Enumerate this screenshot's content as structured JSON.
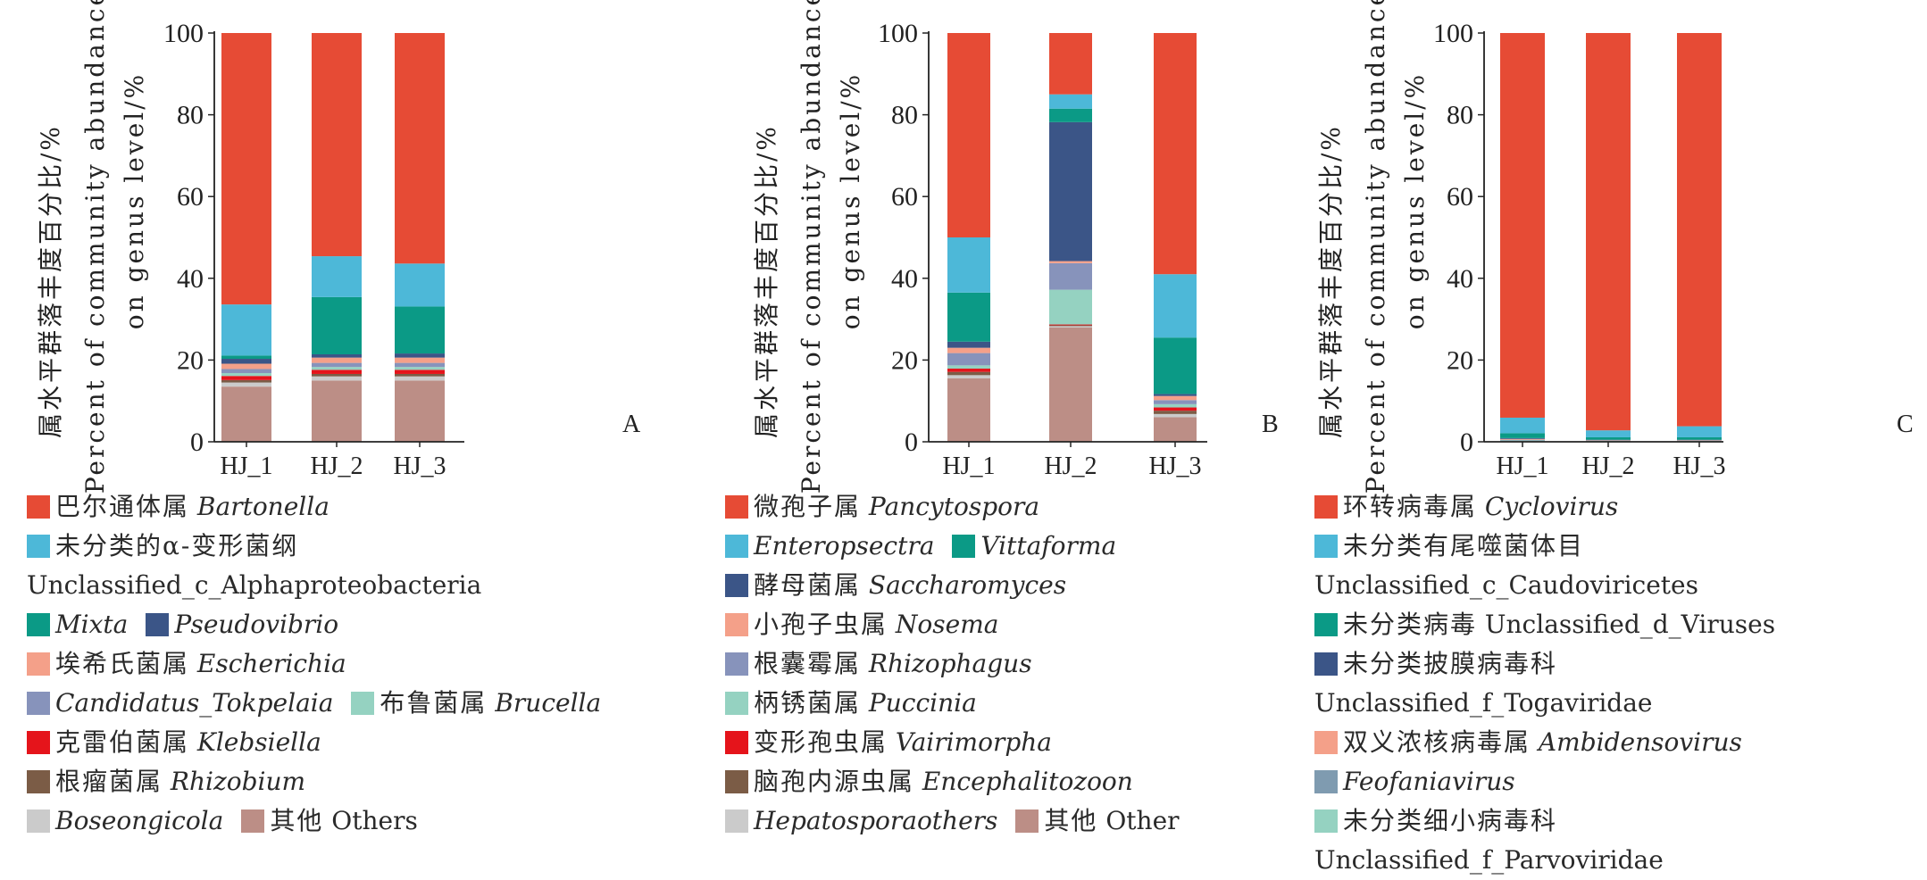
{
  "y_axis": {
    "title_zh": "属水平群落丰度百分比/%",
    "title_en_1": "Percent of community abundance",
    "title_en_2": "on genus level/%",
    "ticks": [
      "0",
      "20",
      "40",
      "60",
      "80",
      "100"
    ]
  },
  "chart_data": [
    {
      "type": "bar",
      "stacked": true,
      "panel": "A",
      "categories": [
        "HJ_1",
        "HJ_2",
        "HJ_3"
      ],
      "ylim": [
        0,
        100
      ],
      "series": [
        {
          "key": "others",
          "color": "#bc8e86",
          "values": [
            13.5,
            15.0,
            15.0
          ]
        },
        {
          "key": "boseongicola",
          "color": "#cbcbcb",
          "values": [
            1.0,
            1.0,
            1.0
          ]
        },
        {
          "key": "rhizobium",
          "color": "#7b5c46",
          "values": [
            0.6,
            0.6,
            0.6
          ]
        },
        {
          "key": "klebsiella",
          "color": "#e5141b",
          "values": [
            1.0,
            1.0,
            1.0
          ]
        },
        {
          "key": "brucella",
          "color": "#95d2c1",
          "values": [
            0.7,
            0.7,
            0.7
          ]
        },
        {
          "key": "candidatus",
          "color": "#8793bb",
          "values": [
            1.0,
            1.0,
            1.0
          ]
        },
        {
          "key": "escherichia",
          "color": "#f4a089",
          "values": [
            1.3,
            1.3,
            1.3
          ]
        },
        {
          "key": "pseudovibrio",
          "color": "#3b5587",
          "values": [
            1.2,
            0.8,
            1.0
          ]
        },
        {
          "key": "mixta",
          "color": "#0b9a86",
          "values": [
            0.8,
            14.0,
            11.5
          ]
        },
        {
          "key": "alpha",
          "color": "#4db8d8",
          "values": [
            12.5,
            10.0,
            10.5
          ]
        },
        {
          "key": "bartonella",
          "color": "#e64b35",
          "values": [
            66.4,
            54.6,
            56.4
          ]
        }
      ]
    },
    {
      "type": "bar",
      "stacked": true,
      "panel": "B",
      "categories": [
        "HJ_1",
        "HJ_2",
        "HJ_3"
      ],
      "ylim": [
        0,
        100
      ],
      "series": [
        {
          "key": "other",
          "color": "#bc8e86",
          "values": [
            15.5,
            28.0,
            6.0
          ]
        },
        {
          "key": "hepatospora",
          "color": "#cbcbcb",
          "values": [
            0.8,
            0.3,
            0.8
          ]
        },
        {
          "key": "encephalitozoon",
          "color": "#7b5c46",
          "values": [
            0.8,
            0.2,
            0.8
          ]
        },
        {
          "key": "vairimorpha",
          "color": "#e5141b",
          "values": [
            0.8,
            0.2,
            0.8
          ]
        },
        {
          "key": "puccinia",
          "color": "#95d2c1",
          "values": [
            0.8,
            8.5,
            0.8
          ]
        },
        {
          "key": "rhizophagus",
          "color": "#8793bb",
          "values": [
            3.0,
            6.5,
            1.0
          ]
        },
        {
          "key": "nosema",
          "color": "#f4a089",
          "values": [
            1.3,
            0.5,
            1.0
          ]
        },
        {
          "key": "saccharomyces",
          "color": "#3b5587",
          "values": [
            1.5,
            34.0,
            0.5
          ]
        },
        {
          "key": "vittaforma",
          "color": "#0b9a86",
          "values": [
            12.0,
            3.3,
            13.8
          ]
        },
        {
          "key": "enteropsectra",
          "color": "#4db8d8",
          "values": [
            13.5,
            3.5,
            15.5
          ]
        },
        {
          "key": "pancytospora",
          "color": "#e64b35",
          "values": [
            50.0,
            15.0,
            59.0
          ]
        }
      ]
    },
    {
      "type": "bar",
      "stacked": true,
      "panel": "C",
      "categories": [
        "HJ_1",
        "HJ_2",
        "HJ_3"
      ],
      "ylim": [
        0,
        100
      ],
      "series": [
        {
          "key": "parvoviridae",
          "color": "#95d2c1",
          "values": [
            0.3,
            0.2,
            0.2
          ]
        },
        {
          "key": "feofaniavirus",
          "color": "#7f9bb0",
          "values": [
            0.2,
            0.1,
            0.1
          ]
        },
        {
          "key": "ambidensovirus",
          "color": "#f4a089",
          "values": [
            0.2,
            0.1,
            0.1
          ]
        },
        {
          "key": "togaviridae",
          "color": "#3b5587",
          "values": [
            0.2,
            0.1,
            0.1
          ]
        },
        {
          "key": "viruses",
          "color": "#0b9a86",
          "values": [
            1.2,
            0.6,
            0.6
          ]
        },
        {
          "key": "caudoviricetes",
          "color": "#4db8d8",
          "values": [
            3.8,
            1.7,
            2.7
          ]
        },
        {
          "key": "cyclovirus",
          "color": "#e64b35",
          "values": [
            94.1,
            97.2,
            96.2
          ]
        }
      ]
    }
  ],
  "legends": {
    "A": [
      [
        {
          "color": "#e64b35",
          "zh": "巴尔通体属",
          "latin": "Bartonella"
        }
      ],
      [
        {
          "color": "#4db8d8",
          "zh": "未分类的α-变形菌纲"
        }
      ],
      [
        {
          "text": "Unclassified_c_Alphaproteobacteria"
        }
      ],
      [
        {
          "color": "#0b9a86",
          "latin": "Mixta"
        },
        {
          "color": "#3b5587",
          "latin": "Pseudovibrio"
        }
      ],
      [
        {
          "color": "#f4a089",
          "zh": "埃希氏菌属",
          "latin": "Escherichia"
        }
      ],
      [
        {
          "color": "#8793bb",
          "latin": "Candidatus_Tokpelaia"
        },
        {
          "color": "#95d2c1",
          "zh": "布鲁菌属",
          "latin": "Brucella"
        }
      ],
      [
        {
          "color": "#e5141b",
          "zh": "克雷伯菌属",
          "latin": "Klebsiella"
        }
      ],
      [
        {
          "color": "#7b5c46",
          "zh": "根瘤菌属",
          "latin": "Rhizobium"
        }
      ],
      [
        {
          "color": "#cbcbcb",
          "latin": "Boseongicola"
        },
        {
          "color": "#bc8e86",
          "zh": "其他",
          "text": "Others"
        }
      ]
    ],
    "B": [
      [
        {
          "color": "#e64b35",
          "zh": "微孢子属",
          "latin": "Pancytospora"
        }
      ],
      [
        {
          "color": "#4db8d8",
          "latin": "Enteropsectra"
        },
        {
          "color": "#0b9a86",
          "latin": "Vittaforma"
        }
      ],
      [
        {
          "color": "#3b5587",
          "zh": "酵母菌属",
          "latin": "Saccharomyces"
        }
      ],
      [
        {
          "color": "#f4a089",
          "zh": "小孢子虫属",
          "latin": "Nosema"
        }
      ],
      [
        {
          "color": "#8793bb",
          "zh": "根囊霉属",
          "latin": "Rhizophagus"
        }
      ],
      [
        {
          "color": "#95d2c1",
          "zh": "柄锈菌属",
          "latin": "Puccinia"
        }
      ],
      [
        {
          "color": "#e5141b",
          "zh": "变形孢虫属",
          "latin": "Vairimorpha"
        }
      ],
      [
        {
          "color": "#7b5c46",
          "zh": "脑孢内源虫属",
          "latin": "Encephalitozoon"
        }
      ],
      [
        {
          "color": "#cbcbcb",
          "latin": "Hepatosporaothers"
        },
        {
          "color": "#bc8e86",
          "zh": "其他",
          "text": "Other"
        }
      ]
    ],
    "C": [
      [
        {
          "color": "#e64b35",
          "zh": "环转病毒属",
          "latin": "Cyclovirus"
        }
      ],
      [
        {
          "color": "#4db8d8",
          "zh": "未分类有尾噬菌体目"
        }
      ],
      [
        {
          "text": "Unclassified_c_Caudoviricetes"
        }
      ],
      [
        {
          "color": "#0b9a86",
          "zh": "未分类病毒",
          "text": "Unclassified_d_Viruses"
        }
      ],
      [
        {
          "color": "#3b5587",
          "zh": "未分类披膜病毒科"
        }
      ],
      [
        {
          "text": "Unclassified_f_Togaviridae"
        }
      ],
      [
        {
          "color": "#f4a089",
          "zh": "双义浓核病毒属",
          "latin": "Ambidensovirus"
        }
      ],
      [
        {
          "color": "#7f9bb0",
          "latin": "Feofaniavirus"
        }
      ],
      [
        {
          "color": "#95d2c1",
          "zh": "未分类细小病毒科"
        }
      ],
      [
        {
          "text": "Unclassified_f_Parvoviridae"
        }
      ]
    ]
  }
}
